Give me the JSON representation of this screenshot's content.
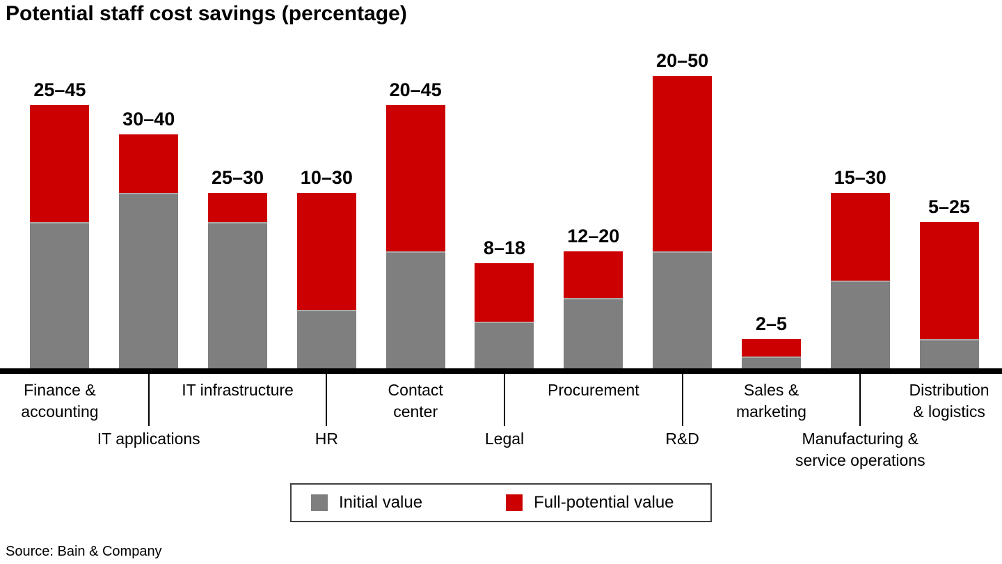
{
  "title": "Potential staff cost savings (percentage)",
  "source": "Source: Bain & Company",
  "colors": {
    "initial_value": "#7F7F7F",
    "full_potential_value": "#CC0000",
    "segment_divider": "#A9A9A9",
    "axis": "#000000",
    "legend_border": "#404040"
  },
  "legend": {
    "items": [
      {
        "label": "Initial value",
        "color": "#7F7F7F"
      },
      {
        "label": "Full-potential value",
        "color": "#CC0000"
      }
    ]
  },
  "chart_data": {
    "type": "bar",
    "stacked": true,
    "title": "Potential staff cost savings (percentage)",
    "xlabel": "",
    "ylabel": "",
    "ylim": [
      0,
      50
    ],
    "grid": false,
    "legend_position": "bottom",
    "categories": [
      "Finance & accounting",
      "IT applications",
      "IT infrastructure",
      "HR",
      "Contact center",
      "Legal",
      "Procurement",
      "R&D",
      "Sales & marketing",
      "Manufacturing & service operations",
      "Distribution & logistics"
    ],
    "series": [
      {
        "name": "Initial value",
        "color": "#7F7F7F",
        "values": [
          25,
          30,
          25,
          10,
          20,
          8,
          12,
          20,
          2,
          15,
          5
        ]
      },
      {
        "name": "Full-potential value (total bar top)",
        "color": "#CC0000",
        "values": [
          45,
          40,
          30,
          30,
          45,
          18,
          20,
          50,
          5,
          30,
          25
        ]
      }
    ],
    "bar_labels": [
      "25–45",
      "30–40",
      "25–30",
      "10–30",
      "20–45",
      "8–18",
      "12–20",
      "20–50",
      "2–5",
      "15–30",
      "5–25"
    ],
    "x_axis_rows": {
      "top": [
        {
          "index": 0,
          "text": "Finance &\naccounting"
        },
        {
          "index": 2,
          "text": "IT infrastructure"
        },
        {
          "index": 4,
          "text": "Contact\ncenter"
        },
        {
          "index": 6,
          "text": "Procurement"
        },
        {
          "index": 8,
          "text": "Sales &\nmarketing"
        },
        {
          "index": 10,
          "text": "Distribution\n& logistics"
        }
      ],
      "bottom": [
        {
          "index": 1,
          "text": "IT applications"
        },
        {
          "index": 3,
          "text": "HR"
        },
        {
          "index": 5,
          "text": "Legal"
        },
        {
          "index": 7,
          "text": "R&D"
        },
        {
          "index": 9,
          "text": "Manufacturing &\nservice operations"
        }
      ]
    },
    "tick_indices": [
      1,
      3,
      5,
      7,
      9
    ]
  }
}
